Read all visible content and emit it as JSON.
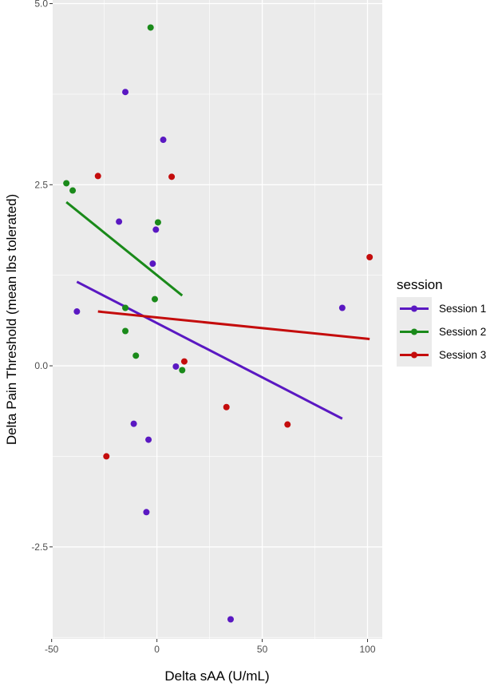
{
  "chart_data": {
    "type": "scatter",
    "title": "",
    "xlabel": "Delta sAA (U/mL)",
    "ylabel": "Delta Pain Threshold (mean lbs tolerated)",
    "xlim": [
      -49.5,
      107
    ],
    "ylim": [
      -3.77,
      5.05
    ],
    "x_ticks": [
      -50,
      0,
      50,
      100
    ],
    "x_tick_labels": [
      "-50",
      "0",
      "50",
      "100"
    ],
    "y_ticks": [
      -2.5,
      0,
      2.5,
      5
    ],
    "y_tick_labels": [
      "-2.5",
      "0.0",
      "2.5",
      "5.0"
    ],
    "legend": {
      "title": "session",
      "position": "right"
    },
    "series": [
      {
        "name": "Session 1",
        "color": "#5a18c2",
        "points": [
          {
            "x": -15,
            "y": 3.78
          },
          {
            "x": 3,
            "y": 3.12
          },
          {
            "x": -18,
            "y": 1.99
          },
          {
            "x": -0.5,
            "y": 1.88
          },
          {
            "x": -2,
            "y": 1.41
          },
          {
            "x": -38,
            "y": 0.75
          },
          {
            "x": 88,
            "y": 0.8
          },
          {
            "x": 9,
            "y": -0.01
          },
          {
            "x": -11,
            "y": -0.8
          },
          {
            "x": -4,
            "y": -1.02
          },
          {
            "x": -5,
            "y": -2.02
          },
          {
            "x": 35,
            "y": -3.5
          }
        ],
        "fit": {
          "x": [
            -38,
            88
          ],
          "y": [
            1.16,
            -0.73
          ]
        }
      },
      {
        "name": "Session 2",
        "color": "#1a8a1a",
        "points": [
          {
            "x": -3,
            "y": 4.67
          },
          {
            "x": -43,
            "y": 2.52
          },
          {
            "x": -40,
            "y": 2.42
          },
          {
            "x": 0.5,
            "y": 1.98
          },
          {
            "x": -15,
            "y": 0.8
          },
          {
            "x": -1,
            "y": 0.92
          },
          {
            "x": -15,
            "y": 0.48
          },
          {
            "x": -10,
            "y": 0.14
          },
          {
            "x": 12,
            "y": -0.06
          }
        ],
        "fit": {
          "x": [
            -43,
            12
          ],
          "y": [
            2.26,
            0.97
          ]
        }
      },
      {
        "name": "Session 3",
        "color": "#c40c0c",
        "points": [
          {
            "x": -28,
            "y": 2.62
          },
          {
            "x": 7,
            "y": 2.61
          },
          {
            "x": 101,
            "y": 1.5
          },
          {
            "x": 13,
            "y": 0.06
          },
          {
            "x": 33,
            "y": -0.57
          },
          {
            "x": 62,
            "y": -0.81
          },
          {
            "x": -24,
            "y": -1.25
          }
        ],
        "fit": {
          "x": [
            -28,
            101
          ],
          "y": [
            0.75,
            0.37
          ]
        }
      }
    ]
  }
}
